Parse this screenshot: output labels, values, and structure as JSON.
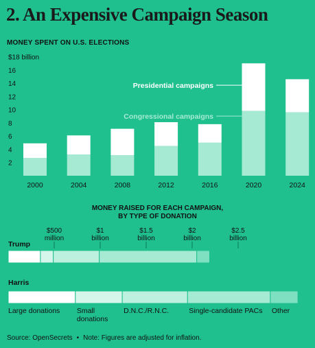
{
  "title": "2. An Expensive Campaign Season",
  "chart_data": [
    {
      "type": "bar",
      "title": "MONEY SPENT ON U.S. ELECTIONS",
      "categories": [
        "2000",
        "2004",
        "2008",
        "2012",
        "2016",
        "2020",
        "2024"
      ],
      "series": [
        {
          "name": "Congressional campaigns",
          "values": [
            2.7,
            3.2,
            3.1,
            4.5,
            5.0,
            9.8,
            9.6
          ]
        },
        {
          "name": "Presidential campaigns",
          "values": [
            2.2,
            2.9,
            4.0,
            3.6,
            2.8,
            7.2,
            5.0
          ]
        }
      ],
      "stacked": true,
      "y_ticks": [
        "2",
        "4",
        "6",
        "8",
        "10",
        "12",
        "14",
        "16",
        "$18 billion"
      ],
      "ylim": [
        0,
        18
      ],
      "grid": false,
      "colors": {
        "Congressional campaigns": "#a6ead3",
        "Presidential campaigns": "#ffffff"
      }
    },
    {
      "type": "bar",
      "orientation": "horizontal",
      "title": "MONEY RAISED FOR EACH CAMPAIGN,\nBY TYPE OF DONATION",
      "x_ticks": [
        {
          "value": 0.5,
          "label_line1": "$500",
          "label_line2": "million"
        },
        {
          "value": 1.0,
          "label_line1": "$1",
          "label_line2": "billion"
        },
        {
          "value": 1.5,
          "label_line1": "$1.5",
          "label_line2": "billion"
        },
        {
          "value": 2.0,
          "label_line1": "$2",
          "label_line2": "billion"
        },
        {
          "value": 2.5,
          "label_line1": "$2.5",
          "label_line2": "billion"
        }
      ],
      "xlim": [
        0,
        3.25
      ],
      "categories": [
        "Trump",
        "Harris"
      ],
      "segments": [
        "Large donations",
        "Small donations",
        "D.N.C./R.N.C.",
        "Single-candidate PACs",
        "Other"
      ],
      "segment_labels": [
        [
          "Large donations"
        ],
        [
          "Small",
          "donations"
        ],
        [
          "D.N.C./R.N.C."
        ],
        [
          "Single-candidate PACs"
        ],
        [
          "Other"
        ]
      ],
      "values": {
        "Trump": [
          0.35,
          0.14,
          0.5,
          1.06,
          0.14
        ],
        "Harris": [
          0.73,
          0.51,
          0.71,
          0.9,
          0.3
        ]
      },
      "colors": [
        "#ffffff",
        "#d6f6ec",
        "#bdf0df",
        "#a6ead3",
        "#7fe0c1"
      ]
    }
  ],
  "footnote": {
    "source": "Source: OpenSecrets",
    "separator": "•",
    "note": "Note: Figures are adjusted for inflation."
  }
}
